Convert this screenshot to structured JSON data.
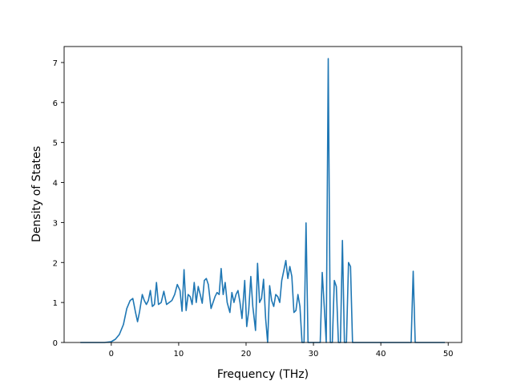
{
  "chart_data": {
    "type": "line",
    "title": "",
    "xlabel": "Frequency (THz)",
    "ylabel": "Density of States",
    "xlim": [
      -7.0,
      52.0
    ],
    "ylim": [
      0,
      7.4
    ],
    "xticks": [
      0,
      10,
      20,
      30,
      40,
      50
    ],
    "yticks": [
      0,
      1,
      2,
      3,
      4,
      5,
      6,
      7
    ],
    "grid": false,
    "legend": "none",
    "series": [
      {
        "color": "#1f77b4",
        "x": [
          -4.6,
          -1.0,
          0.0,
          0.6,
          1.2,
          1.8,
          2.3,
          2.8,
          3.2,
          3.6,
          3.9,
          4.2,
          4.6,
          4.9,
          5.2,
          5.5,
          5.8,
          6.1,
          6.4,
          6.7,
          7.0,
          7.4,
          7.8,
          8.2,
          8.6,
          9.0,
          9.4,
          9.8,
          10.2,
          10.5,
          10.8,
          11.1,
          11.4,
          11.7,
          12.0,
          12.3,
          12.6,
          12.9,
          13.2,
          13.5,
          13.8,
          14.1,
          14.4,
          14.8,
          15.1,
          15.4,
          15.7,
          16.0,
          16.3,
          16.6,
          16.9,
          17.2,
          17.6,
          17.9,
          18.2,
          18.5,
          18.8,
          19.1,
          19.4,
          19.8,
          20.1,
          20.4,
          20.7,
          21.0,
          21.4,
          21.7,
          22.0,
          22.3,
          22.6,
          22.9,
          23.2,
          23.5,
          23.8,
          24.1,
          24.4,
          24.7,
          25.0,
          25.3,
          25.6,
          25.9,
          26.2,
          26.5,
          26.8,
          27.1,
          27.4,
          27.7,
          28.0,
          28.3,
          28.6,
          28.9,
          29.2,
          29.5,
          29.8,
          30.2,
          30.6,
          31.0,
          31.3,
          31.6,
          31.9,
          32.2,
          32.5,
          32.8,
          33.1,
          33.4,
          33.7,
          34.0,
          34.3,
          34.6,
          34.9,
          35.2,
          35.5,
          35.8,
          36.2,
          36.6,
          44.0,
          44.5,
          44.8,
          45.1,
          45.6,
          49.5
        ],
        "y": [
          0,
          0,
          0.02,
          0.08,
          0.2,
          0.45,
          0.85,
          1.05,
          1.1,
          0.75,
          0.52,
          0.78,
          1.2,
          1.05,
          0.95,
          1.05,
          1.3,
          0.9,
          0.95,
          1.5,
          0.95,
          1.0,
          1.28,
          0.95,
          1.0,
          1.05,
          1.2,
          1.45,
          1.3,
          0.78,
          1.82,
          0.8,
          1.2,
          1.15,
          0.95,
          1.5,
          1.0,
          1.4,
          1.2,
          0.98,
          1.55,
          1.6,
          1.45,
          0.85,
          1.0,
          1.15,
          1.25,
          1.2,
          1.85,
          1.2,
          1.5,
          1.0,
          0.75,
          1.25,
          1.0,
          1.2,
          1.3,
          1.0,
          0.6,
          1.55,
          0.4,
          0.8,
          1.65,
          0.9,
          0.3,
          1.98,
          1.0,
          1.1,
          1.58,
          0.6,
          0.0,
          1.42,
          1.05,
          0.9,
          1.2,
          1.15,
          1.0,
          1.55,
          1.8,
          2.05,
          1.6,
          1.9,
          1.65,
          0.75,
          0.8,
          1.2,
          0.9,
          0.0,
          0.0,
          2.99,
          0.0,
          0.0,
          0.0,
          0.0,
          0.0,
          0.0,
          1.75,
          0.9,
          0.0,
          7.1,
          0.0,
          0.0,
          1.55,
          1.4,
          0.0,
          0.0,
          2.55,
          0.0,
          0.0,
          2.0,
          1.9,
          0.0,
          0.0,
          0.0,
          0.0,
          0.0,
          1.78,
          0.0,
          0.0,
          0.0
        ]
      }
    ]
  }
}
